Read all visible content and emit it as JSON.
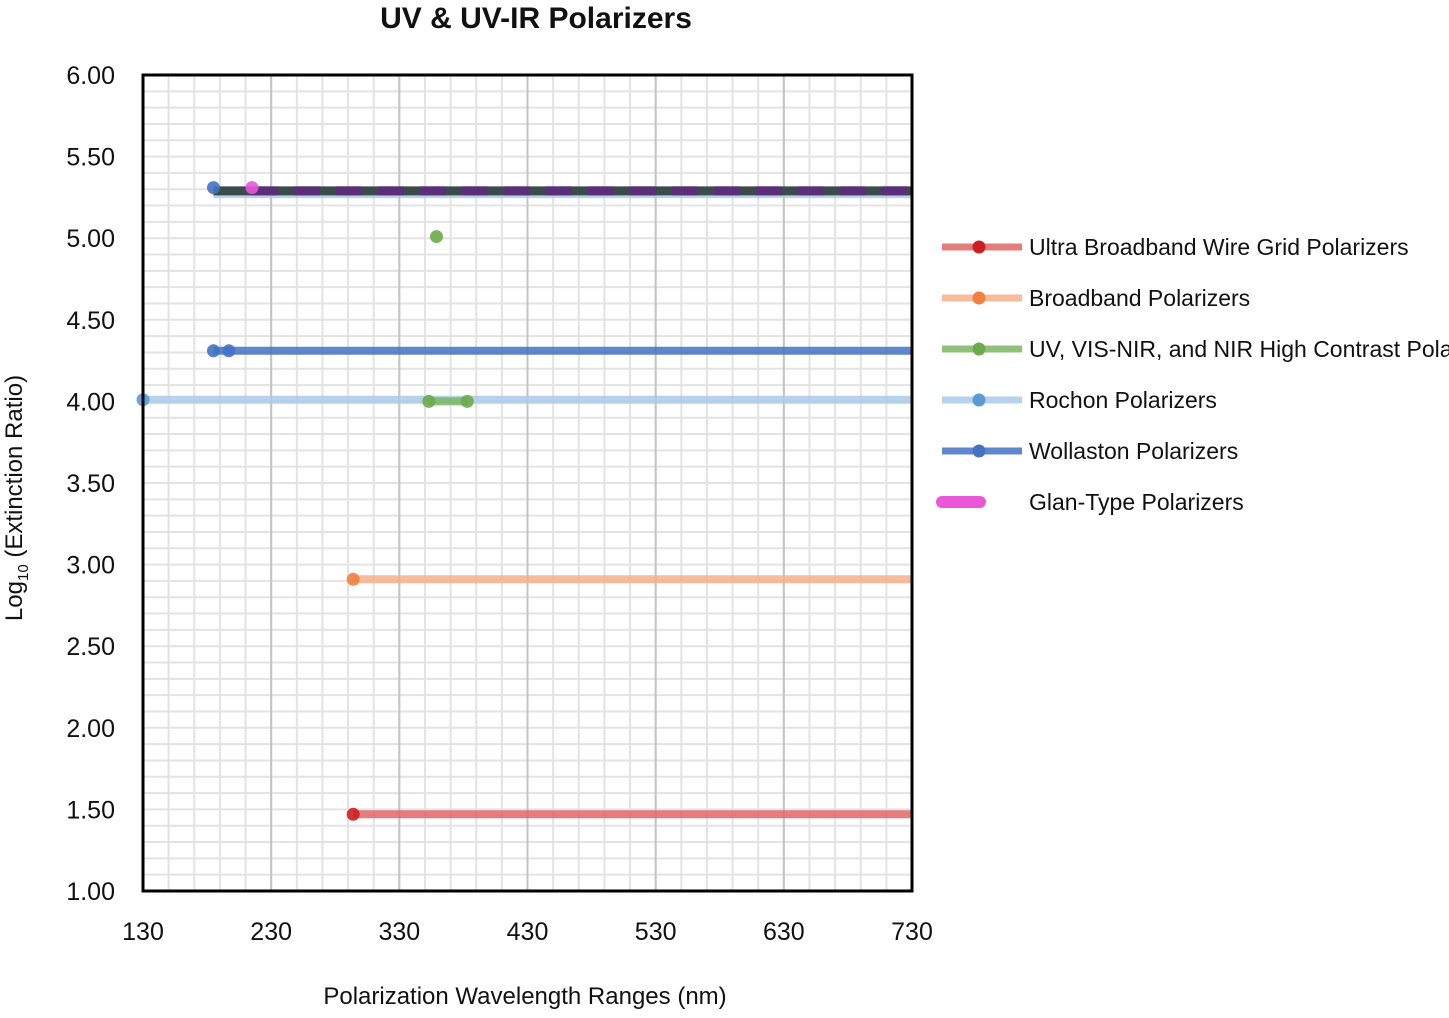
{
  "chart_data": {
    "type": "line",
    "title": "UV & UV-IR Polarizers",
    "xlabel": "Polarization Wavelength Ranges (nm)",
    "ylabel": {
      "prefix": "Log",
      "subscript": "10",
      "suffix": " (Extinction Ratio)"
    },
    "xlim": [
      130,
      730
    ],
    "ylim": [
      1.0,
      6.0
    ],
    "x_ticks": [
      130,
      230,
      330,
      430,
      530,
      630,
      730
    ],
    "x_tick_labels": [
      "130",
      "230",
      "330",
      "430",
      "530",
      "630",
      "730"
    ],
    "y_ticks": [
      1.0,
      1.5,
      2.0,
      2.5,
      3.0,
      3.5,
      4.0,
      4.5,
      5.0,
      5.5,
      6.0
    ],
    "y_tick_labels": [
      "1.00",
      "1.50",
      "2.00",
      "2.50",
      "3.00",
      "3.50",
      "4.00",
      "4.50",
      "5.00",
      "5.50",
      "6.00"
    ],
    "grid": true,
    "legend_position": "right",
    "series": [
      {
        "name": "Ultra Broadband Wire Grid Polarizers",
        "color": "#e06666",
        "marker_color": "#cc1f1f",
        "segments": [
          {
            "x": [
              294,
              730
            ],
            "y": [
              1.47,
              1.47
            ],
            "start_marker": true
          }
        ]
      },
      {
        "name": "Broadband Polarizers",
        "color": "#f6b08a",
        "marker_color": "#f0813f",
        "segments": [
          {
            "x": [
              294,
              730
            ],
            "y": [
              2.91,
              2.91
            ],
            "start_marker": true
          }
        ]
      },
      {
        "name": "UV, VIS-NIR, and NIR High Contrast Polarizers",
        "color": "#7cb662",
        "marker_color": "#6aab4c",
        "segments": [
          {
            "x": [
              359,
              359
            ],
            "y": [
              5.01,
              5.01
            ],
            "start_marker": true
          },
          {
            "x": [
              353,
              383
            ],
            "y": [
              4.0,
              4.0
            ],
            "start_marker": true,
            "end_marker": true
          }
        ]
      },
      {
        "name": "Rochon Polarizers",
        "color": "#a9cbe8",
        "marker_color": "#5b9bd5",
        "segments": [
          {
            "x": [
              130,
              730
            ],
            "y": [
              4.01,
              4.01
            ],
            "start_marker": true
          },
          {
            "x": [
              185,
              730
            ],
            "y": [
              5.27,
              5.27
            ],
            "start_marker": false
          }
        ]
      },
      {
        "name": "Wollaston Polarizers",
        "color": "#4472c4",
        "marker_color": "#4472c4",
        "segments": [
          {
            "x": [
              185,
              730
            ],
            "y": [
              4.31,
              4.31
            ],
            "start_marker": true
          },
          {
            "x": [
              197,
              197
            ],
            "y": [
              4.31,
              4.31
            ],
            "start_marker": true
          },
          {
            "x": [
              185,
              185
            ],
            "y": [
              5.31,
              5.31
            ],
            "start_marker": true
          }
        ]
      },
      {
        "name": "Glan-Type Polarizers",
        "color": "#ea57d9",
        "marker_color": "#ea57d9",
        "segments": [
          {
            "x": [
              215,
              215
            ],
            "y": [
              5.31,
              5.31
            ],
            "start_marker": true
          }
        ]
      }
    ],
    "overlay_lines": [
      {
        "x": [
          185,
          730
        ],
        "y": [
          5.29,
          5.29
        ],
        "color": "#3b4a4b",
        "dash": false
      },
      {
        "x": [
          215,
          730
        ],
        "y": [
          5.29,
          5.29
        ],
        "color": "#5a2f78",
        "dash": true
      }
    ]
  }
}
